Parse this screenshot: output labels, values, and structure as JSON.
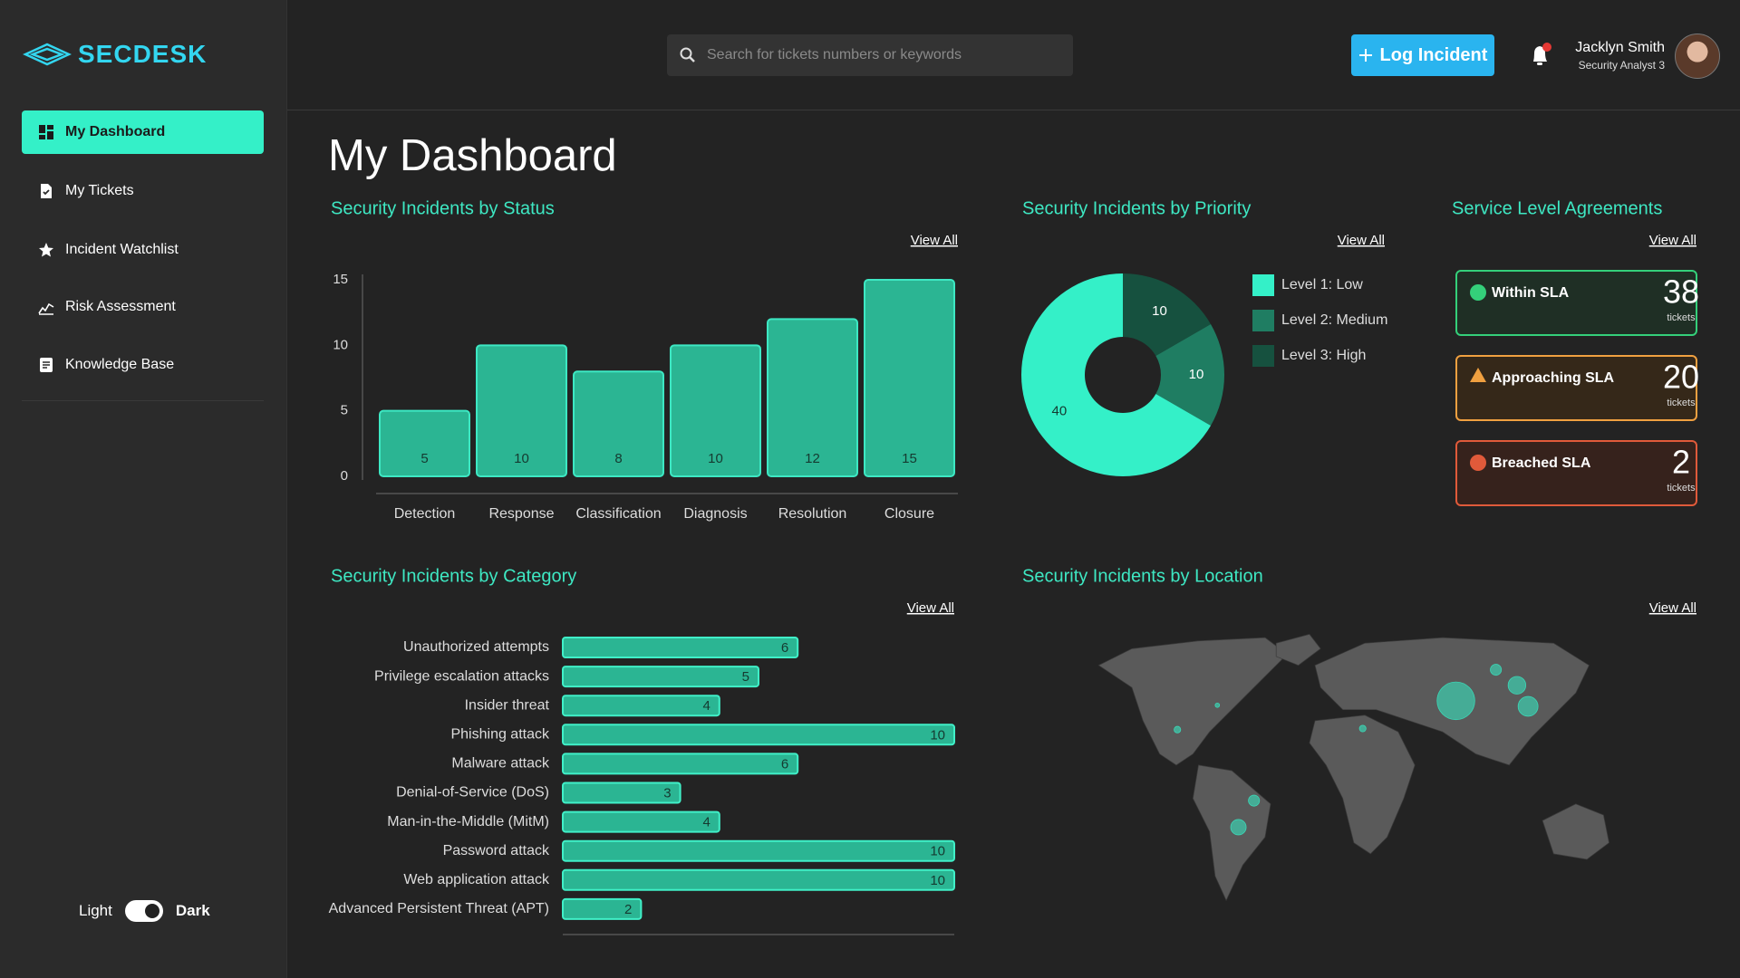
{
  "sidebar": {
    "logo": "SECDESK",
    "nav": [
      "My Dashboard",
      "My Tickets",
      "Incident Watchlist",
      "Risk Assessment",
      "Knowledge Base"
    ],
    "theme_light": "Light",
    "theme_dark": "Dark"
  },
  "header": {
    "search_placeholder": "Search for tickets numbers or keywords",
    "button": "Log Incident",
    "user_name": "Jacklyn Smith",
    "user_role": "Security Analyst 3"
  },
  "page_title": "My Dashboard",
  "chart_data": [
    {
      "type": "bar",
      "title": "Security Incidents by Status",
      "view_all": "View All",
      "categories": [
        "Detection",
        "Response",
        "Classification",
        "Diagnosis",
        "Resolution",
        "Closure"
      ],
      "values": [
        5,
        10,
        8,
        10,
        12,
        15
      ],
      "color": "#2bb593",
      "ylim": [
        0,
        15
      ],
      "yticks": [
        0,
        5,
        10,
        15
      ]
    },
    {
      "type": "pie",
      "title": "Security Incidents by Priority",
      "view_all": "View All",
      "categories": [
        "Level 1: Low",
        "Level 2: Medium",
        "Level 3: High"
      ],
      "values": [
        40,
        10,
        10
      ],
      "colors": [
        "#34f0c8",
        "#1f7d62",
        "#16513f"
      ]
    },
    {
      "type": "hbar",
      "title": "Security Incidents by Category",
      "view_all": "View All",
      "categories": [
        "Unauthorized attempts",
        "Privilege escalation attacks",
        "Insider threat",
        "Phishing attack",
        "Malware attack",
        "Denial-of-Service (DoS)",
        "Man-in-the-Middle (MitM)",
        "Password attack",
        "Web application attack",
        "Advanced Persistent Threat (APT)"
      ],
      "values": [
        6,
        5,
        4,
        10,
        6,
        3,
        4,
        10,
        10,
        2
      ],
      "color": "#2bb593",
      "xlim": [
        0,
        10
      ]
    }
  ],
  "sla": {
    "title": "Service Level Agreements",
    "view_all": "View All",
    "cards": [
      {
        "label": "Within SLA",
        "count": 38,
        "unit": "tickets"
      },
      {
        "label": "Approaching SLA",
        "count": 20,
        "unit": "tickets"
      },
      {
        "label": "Breached SLA",
        "count": 2,
        "unit": "tickets"
      }
    ]
  },
  "location": {
    "title": "Security Incidents by Location",
    "view_all": "View All"
  }
}
